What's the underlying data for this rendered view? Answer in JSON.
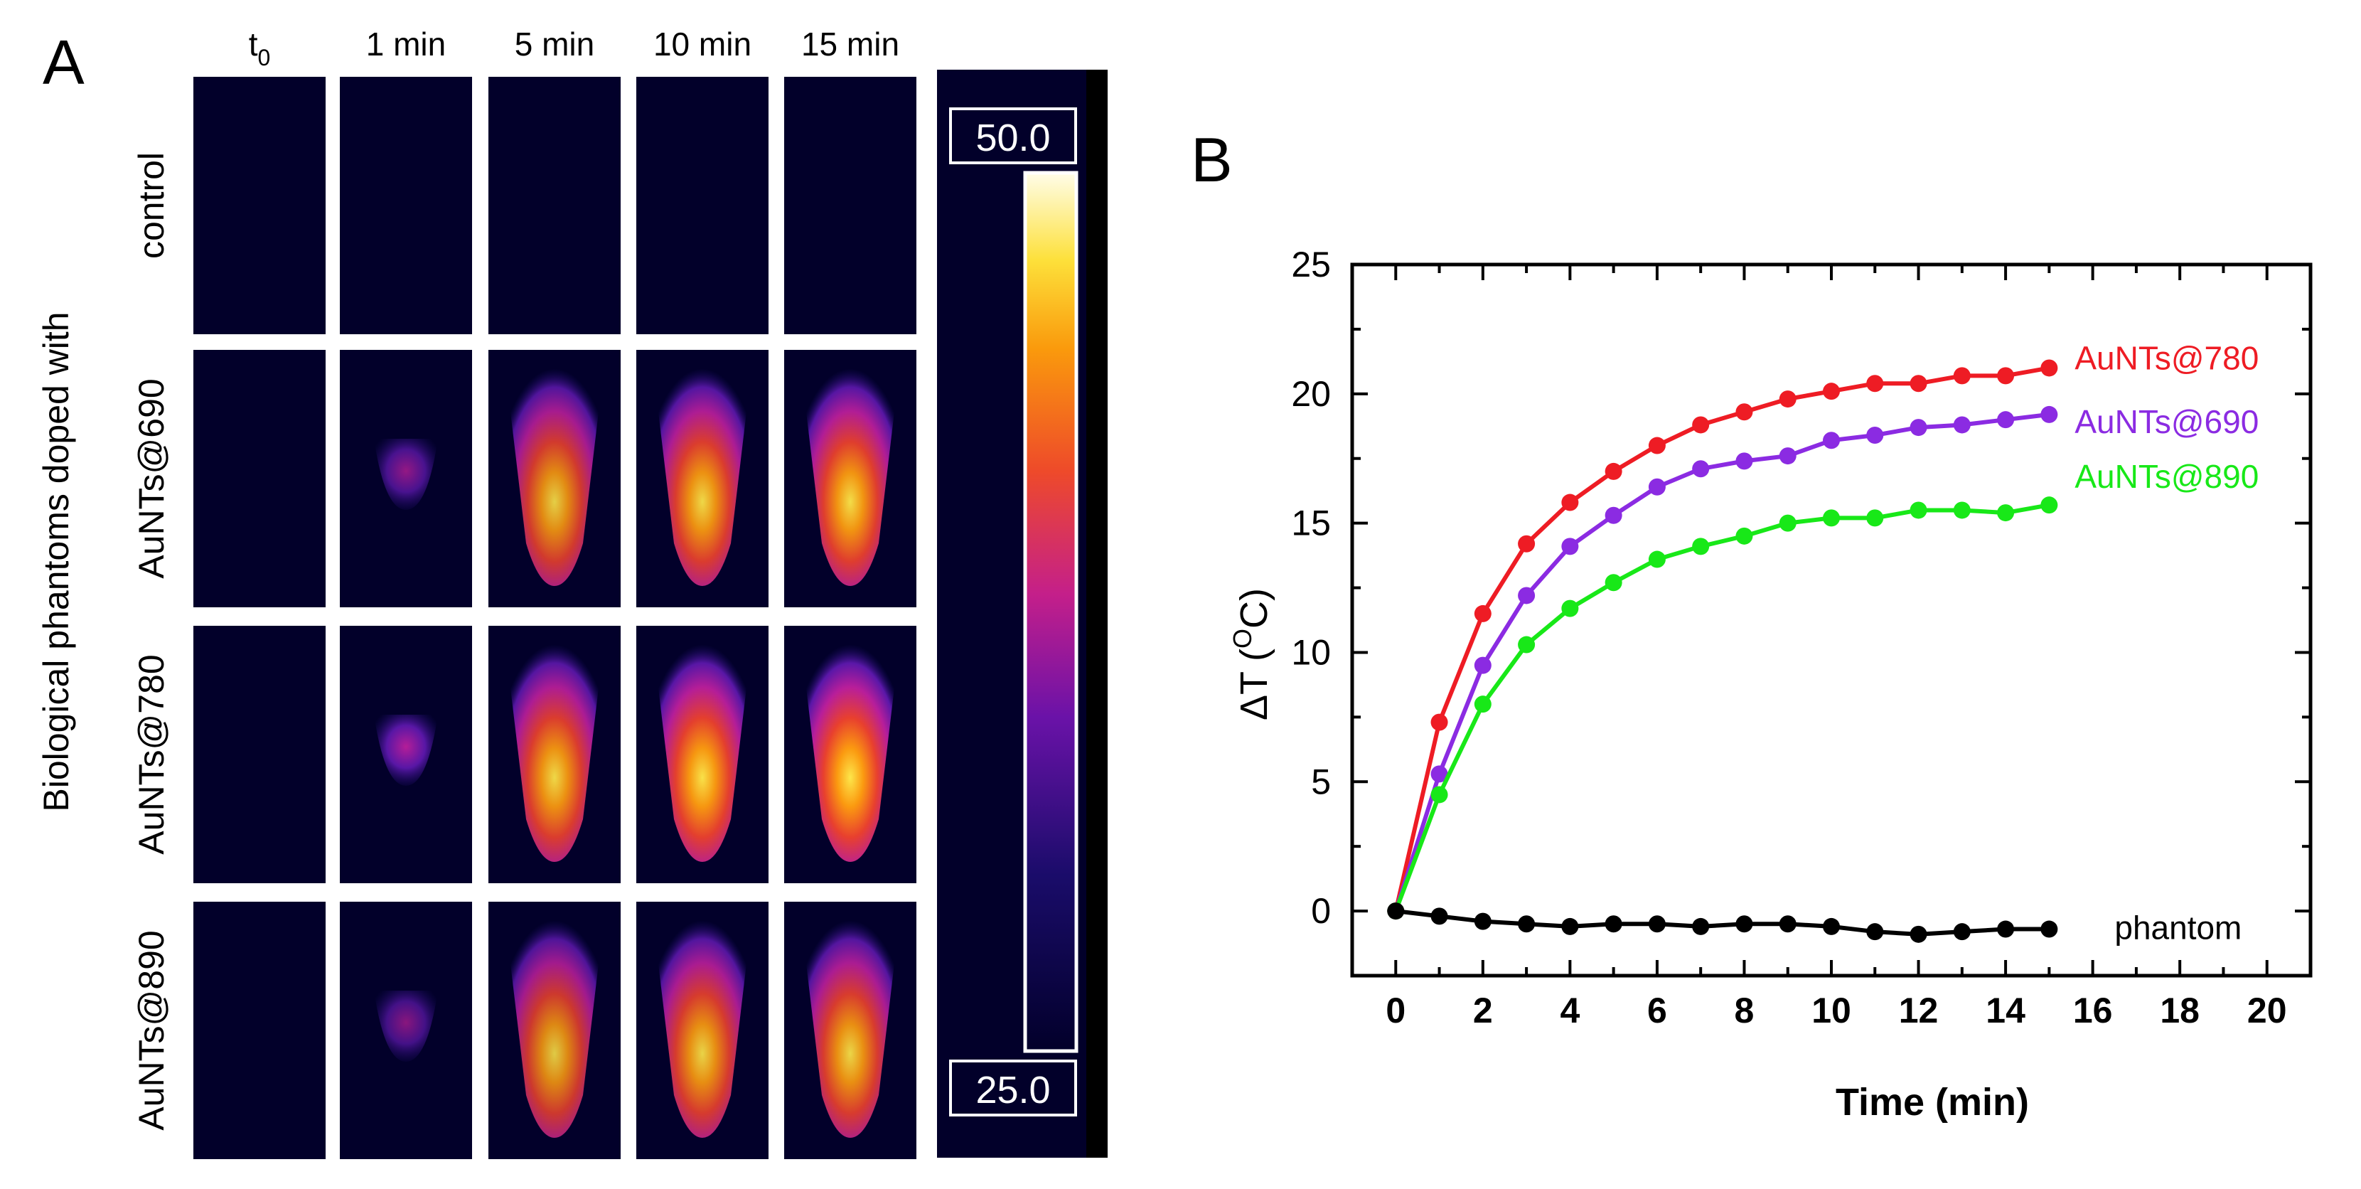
{
  "panel_a": {
    "letter": "A",
    "side_label": "Biological phantoms doped with",
    "columns": [
      {
        "base": "t",
        "sub": "0"
      },
      {
        "base": "1 min",
        "sub": ""
      },
      {
        "base": "5 min",
        "sub": ""
      },
      {
        "base": "10 min",
        "sub": ""
      },
      {
        "base": "15 min",
        "sub": ""
      }
    ],
    "rows": [
      {
        "label": "control",
        "intensity": [
          0,
          0,
          0,
          0,
          0
        ]
      },
      {
        "label": "AuNTs@690",
        "intensity": [
          0,
          0.25,
          0.75,
          0.85,
          0.9
        ]
      },
      {
        "label": "AuNTs@780",
        "intensity": [
          0,
          0.4,
          0.85,
          0.95,
          1.0
        ]
      },
      {
        "label": "AuNTs@890",
        "intensity": [
          0,
          0.2,
          0.7,
          0.8,
          0.82
        ]
      }
    ],
    "scale": {
      "max_label": "50.0",
      "min_label": "25.0"
    },
    "colors": {
      "background": "#02002a",
      "black_strip": "#000000"
    }
  },
  "chart_data": {
    "type": "line",
    "panel_letter": "B",
    "title": "",
    "xlabel": "Time (min)",
    "ylabel_prefix": "ΔT (",
    "ylabel_sup": "O",
    "ylabel_suffix": "C)",
    "xlim": [
      -1,
      21
    ],
    "ylim": [
      -2.5,
      25
    ],
    "xticks": [
      0,
      2,
      4,
      6,
      8,
      10,
      12,
      14,
      16,
      18,
      20
    ],
    "yticks": [
      0,
      5,
      10,
      15,
      20,
      25
    ],
    "x": [
      0,
      1,
      2,
      3,
      4,
      5,
      6,
      7,
      8,
      9,
      10,
      11,
      12,
      13,
      14,
      15
    ],
    "series": [
      {
        "name": "AuNTs@780",
        "color": "#ee1c24",
        "values": [
          0,
          7.3,
          11.5,
          14.2,
          15.8,
          17.0,
          18.0,
          18.8,
          19.3,
          19.8,
          20.1,
          20.4,
          20.4,
          20.7,
          20.7,
          21.0
        ]
      },
      {
        "name": "AuNTs@690",
        "color": "#8b2be2",
        "values": [
          0,
          5.3,
          9.5,
          12.2,
          14.1,
          15.3,
          16.4,
          17.1,
          17.4,
          17.6,
          18.2,
          18.4,
          18.7,
          18.8,
          19.0,
          19.2
        ]
      },
      {
        "name": "AuNTs@890",
        "color": "#18e818",
        "values": [
          0,
          4.5,
          8.0,
          10.3,
          11.7,
          12.7,
          13.6,
          14.1,
          14.5,
          15.0,
          15.2,
          15.2,
          15.5,
          15.5,
          15.4,
          15.7
        ]
      },
      {
        "name": "phantom",
        "color": "#000000",
        "values": [
          0,
          -0.2,
          -0.4,
          -0.5,
          -0.6,
          -0.5,
          -0.5,
          -0.6,
          -0.5,
          -0.5,
          -0.6,
          -0.8,
          -0.9,
          -0.8,
          -0.7,
          -0.7
        ]
      }
    ]
  }
}
